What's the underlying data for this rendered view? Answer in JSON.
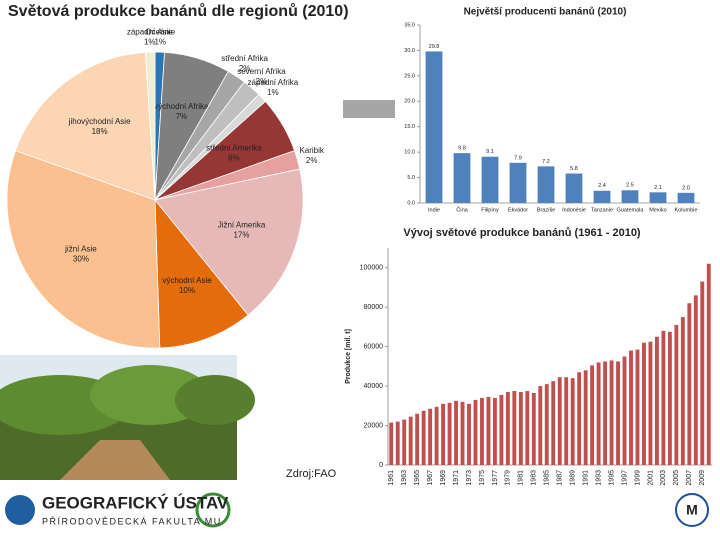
{
  "chart_data": [
    {
      "type": "pie",
      "title": "Světová produkce banánů dle regionů (2010)",
      "categories": [
        "Oceánie",
        "východní Afrika",
        "střední Afrika",
        "severní Afrika",
        "západní Afrika",
        "střední Amerika",
        "Karibik",
        "Jižní Amerika",
        "východní Asie",
        "jižní Asie",
        "jihovýchodní Asie",
        "západní Asie"
      ],
      "values": [
        1,
        7,
        2,
        2,
        1,
        6,
        2,
        17,
        10,
        30,
        18,
        1
      ],
      "value_labels": [
        "1%",
        "7%",
        "2%",
        "2%",
        "1%",
        "6%",
        "2%",
        "17%",
        "10%",
        "30%",
        "18%",
        "1%"
      ],
      "colors": [
        "#2e75b6",
        "#7f7f7f",
        "#a6a6a6",
        "#bfbfbf",
        "#d9d9d9",
        "#953735",
        "#e6a0a0",
        "#e6b9b8",
        "#e46c0a",
        "#fac090",
        "#fcd5b5",
        "#eeeed2"
      ]
    },
    {
      "type": "bar",
      "title": "Největší producenti banánů (2010)",
      "categories": [
        "Indie",
        "Čína",
        "Filipíny",
        "Ekvádor",
        "Brazílie",
        "Indonésie",
        "Tanzanie",
        "Guatemala",
        "Mexiko",
        "Kolumbie"
      ],
      "values": [
        29.8,
        9.8,
        9.1,
        7.9,
        7.2,
        5.8,
        2.4,
        2.5,
        2.1,
        2.0
      ],
      "value_labels": [
        "29.8",
        "9.8",
        "9.1",
        "7.9",
        "7.2",
        "5.8",
        "2.4",
        "2.5",
        "2.1",
        "2.0"
      ],
      "color": "#4f81bd",
      "ylim": [
        0,
        35
      ],
      "yticks": [
        {
          "value": 0,
          "label": "0.0"
        },
        {
          "value": 5,
          "label": "5.0"
        },
        {
          "value": 10,
          "label": "10.0"
        },
        {
          "value": 15,
          "label": "15.0"
        },
        {
          "value": 20,
          "label": "20.0"
        },
        {
          "value": 25,
          "label": "25.0"
        },
        {
          "value": 30,
          "label": "30.0"
        },
        {
          "value": 35,
          "label": "35.0"
        }
      ]
    },
    {
      "type": "bar",
      "title": "Vývoj světové produkce banánů (1961 - 2010)",
      "y_label": "Produkce [mil. t]",
      "categories": [
        "1961",
        null,
        "1963",
        null,
        "1965",
        null,
        "1967",
        null,
        "1969",
        null,
        "1971",
        null,
        "1973",
        null,
        "1975",
        null,
        "1977",
        null,
        "1979",
        null,
        "1981",
        null,
        "1983",
        null,
        "1985",
        null,
        "1987",
        null,
        "1989",
        null,
        "1991",
        null,
        "1993",
        null,
        "1995",
        null,
        "1997",
        null,
        "1999",
        null,
        "2001",
        null,
        "2003",
        null,
        "2005",
        null,
        "2007",
        null,
        "2009",
        null
      ],
      "values": [
        21500,
        22000,
        23000,
        24500,
        26000,
        27500,
        28500,
        29500,
        31000,
        31500,
        32500,
        32000,
        31000,
        33000,
        34000,
        34500,
        34000,
        35500,
        37000,
        37500,
        37000,
        37500,
        36500,
        40000,
        41000,
        42500,
        44500,
        44500,
        44000,
        47000,
        48000,
        50500,
        52000,
        52500,
        53000,
        52500,
        55000,
        58000,
        58500,
        62000,
        62500,
        65000,
        68000,
        67500,
        71000,
        75000,
        82000,
        86000,
        93000,
        102000
      ],
      "color": "#c0504d",
      "ylim": [
        0,
        110000
      ],
      "yticks": [
        0,
        20000,
        40000,
        60000,
        80000,
        100000
      ]
    }
  ],
  "footer": {
    "source": "Zdroj:FAO",
    "logo_title": "GEOGRAFICKÝ ÚSTAV",
    "logo_subtitle": "PŘÍRODOVĚDECKÁ FAKULTA MU"
  }
}
